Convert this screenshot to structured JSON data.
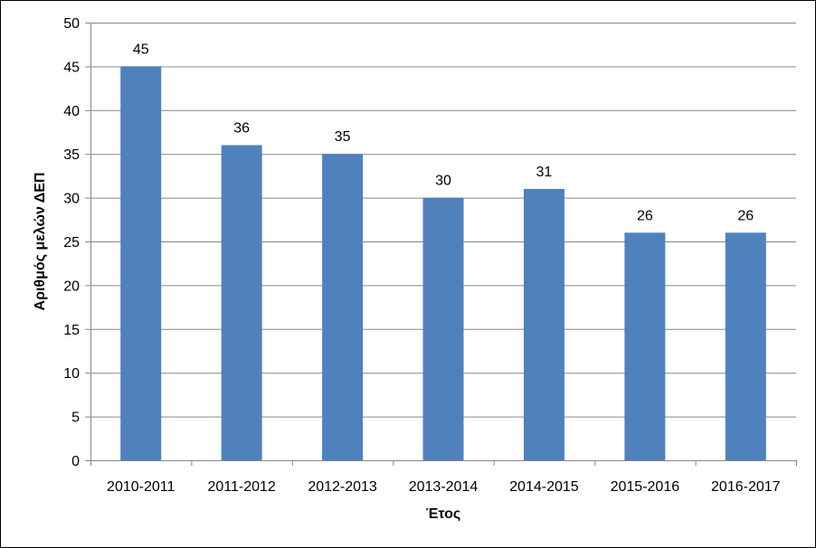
{
  "chart_data": {
    "type": "bar",
    "categories": [
      "2010-2011",
      "2011-2012",
      "2012-2013",
      "2013-2014",
      "2014-2015",
      "2015-2016",
      "2016-2017"
    ],
    "values": [
      45,
      36,
      35,
      30,
      31,
      26,
      26
    ],
    "xlabel": "Έτος",
    "ylabel": "Αριθμός μελών ΔΕΠ",
    "ylim": [
      0,
      50
    ],
    "yticks": [
      0,
      5,
      10,
      15,
      20,
      25,
      30,
      35,
      40,
      45,
      50
    ],
    "grid": true,
    "bar_color": "#4F81BD",
    "grid_color": "#868686",
    "data_labels": true
  }
}
